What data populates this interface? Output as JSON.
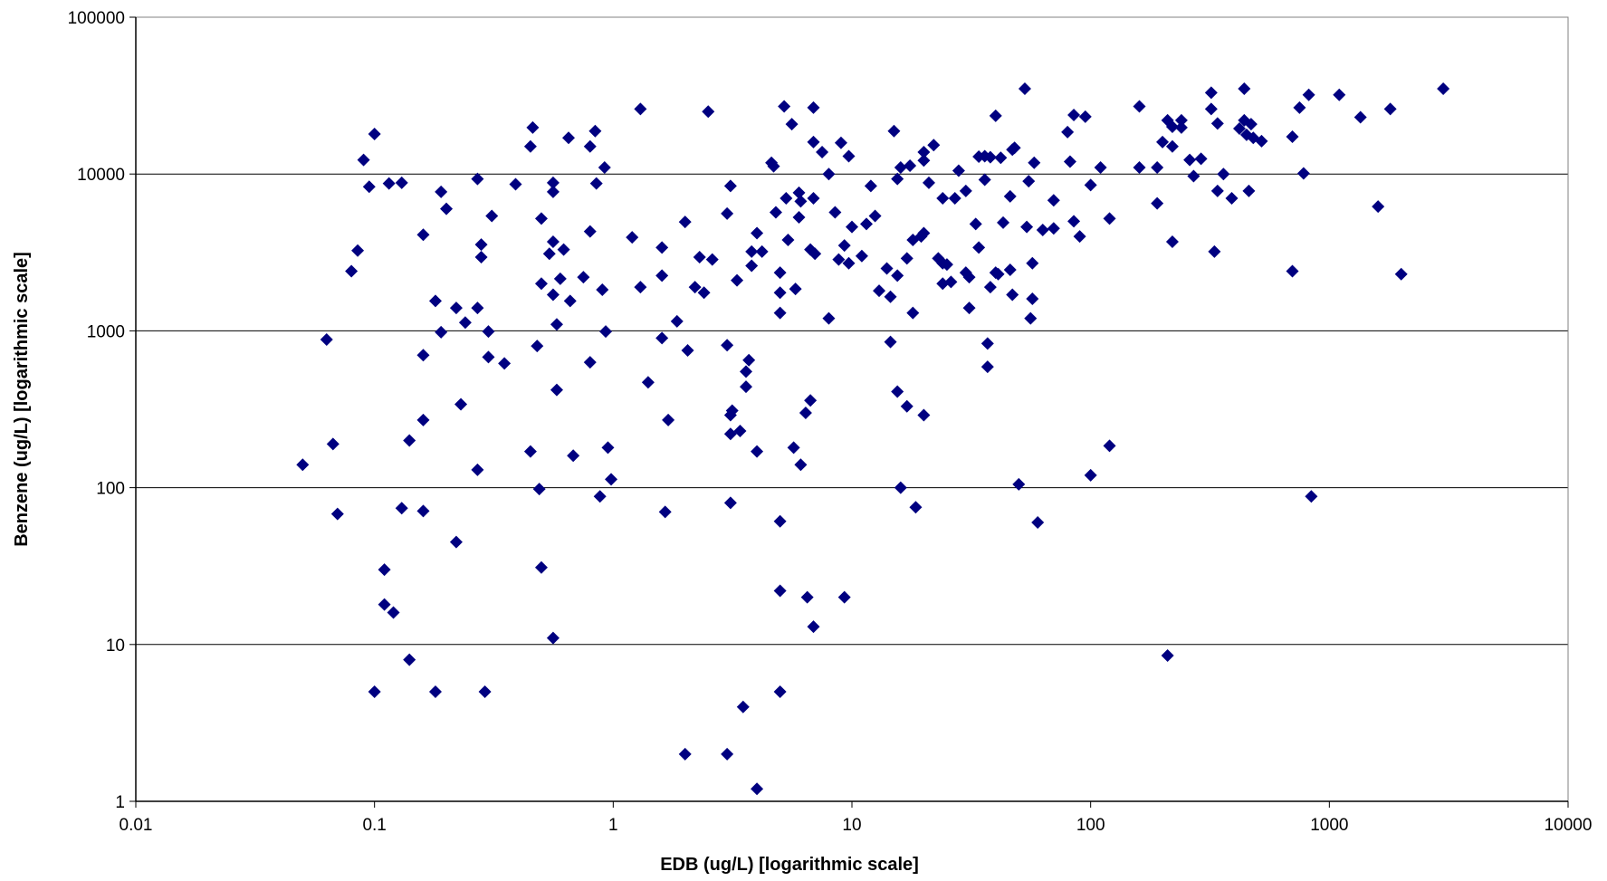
{
  "chart_data": {
    "type": "scatter",
    "title": "",
    "xlabel": "EDB (ug/L) [logarithmic scale]",
    "ylabel": "Benzene (ug/L) [logarithmic scale]",
    "x_scale": "log",
    "y_scale": "log",
    "xlim": [
      0.01,
      10000
    ],
    "ylim": [
      1,
      100000
    ],
    "x_ticks": [
      "0.01",
      "0.1",
      "1",
      "10",
      "100",
      "1000",
      "10000"
    ],
    "y_ticks": [
      "1",
      "10",
      "100",
      "1000",
      "10000",
      "100000"
    ],
    "horizontal_gridlines": true,
    "vertical_gridlines": false,
    "legend": "none",
    "colors": {
      "marker": "#000080",
      "gridline": "#000000",
      "axis": "#000000"
    },
    "marker": "diamond",
    "points": [
      [
        0.05,
        140
      ],
      [
        0.063,
        880
      ],
      [
        0.067,
        190
      ],
      [
        0.07,
        68
      ],
      [
        0.08,
        2400
      ],
      [
        0.085,
        3250
      ],
      [
        0.09,
        12300
      ],
      [
        0.095,
        8300
      ],
      [
        0.1,
        18000
      ],
      [
        0.1,
        5
      ],
      [
        0.11,
        30
      ],
      [
        0.11,
        18
      ],
      [
        0.115,
        8700
      ],
      [
        0.12,
        16
      ],
      [
        0.13,
        8800
      ],
      [
        0.13,
        74
      ],
      [
        0.14,
        200
      ],
      [
        0.14,
        8
      ],
      [
        0.16,
        4100
      ],
      [
        0.16,
        700
      ],
      [
        0.16,
        270
      ],
      [
        0.16,
        71
      ],
      [
        0.18,
        1550
      ],
      [
        0.18,
        5
      ],
      [
        0.19,
        7700
      ],
      [
        0.19,
        980
      ],
      [
        0.2,
        6000
      ],
      [
        0.22,
        1400
      ],
      [
        0.22,
        45
      ],
      [
        0.23,
        340
      ],
      [
        0.24,
        1130
      ],
      [
        0.27,
        9300
      ],
      [
        0.27,
        1400
      ],
      [
        0.27,
        130
      ],
      [
        0.28,
        3550
      ],
      [
        0.28,
        2950
      ],
      [
        0.29,
        5
      ],
      [
        0.3,
        990
      ],
      [
        0.3,
        680
      ],
      [
        0.31,
        5400
      ],
      [
        0.35,
        620
      ],
      [
        0.39,
        8600
      ],
      [
        0.45,
        15000
      ],
      [
        0.45,
        170
      ],
      [
        0.46,
        19800
      ],
      [
        0.48,
        800
      ],
      [
        0.49,
        98
      ],
      [
        0.5,
        5200
      ],
      [
        0.5,
        2000
      ],
      [
        0.5,
        31
      ],
      [
        0.54,
        3100
      ],
      [
        0.56,
        8800
      ],
      [
        0.56,
        7700
      ],
      [
        0.56,
        3700
      ],
      [
        0.56,
        1700
      ],
      [
        0.56,
        11
      ],
      [
        0.58,
        1100
      ],
      [
        0.58,
        420
      ],
      [
        0.6,
        2150
      ],
      [
        0.62,
        3300
      ],
      [
        0.65,
        17000
      ],
      [
        0.66,
        1550
      ],
      [
        0.68,
        160
      ],
      [
        0.75,
        2200
      ],
      [
        0.8,
        15000
      ],
      [
        0.8,
        4300
      ],
      [
        0.8,
        630
      ],
      [
        0.84,
        18800
      ],
      [
        0.85,
        8700
      ],
      [
        0.88,
        88
      ],
      [
        0.9,
        1830
      ],
      [
        0.92,
        11000
      ],
      [
        0.93,
        990
      ],
      [
        0.95,
        180
      ],
      [
        0.98,
        113
      ],
      [
        1.2,
        3950
      ],
      [
        1.3,
        26000
      ],
      [
        1.3,
        1900
      ],
      [
        1.4,
        470
      ],
      [
        1.6,
        3400
      ],
      [
        1.6,
        2250
      ],
      [
        1.6,
        900
      ],
      [
        1.65,
        70
      ],
      [
        1.7,
        270
      ],
      [
        1.85,
        1150
      ],
      [
        2.0,
        4950
      ],
      [
        2.05,
        750
      ],
      [
        2.0,
        2
      ],
      [
        2.2,
        1900
      ],
      [
        2.3,
        2950
      ],
      [
        2.4,
        1750
      ],
      [
        2.5,
        25000
      ],
      [
        2.6,
        2850
      ],
      [
        3.0,
        5600
      ],
      [
        3.0,
        810
      ],
      [
        3.0,
        2
      ],
      [
        3.1,
        8400
      ],
      [
        3.1,
        290
      ],
      [
        3.1,
        220
      ],
      [
        3.15,
        310
      ],
      [
        3.1,
        80
      ],
      [
        3.3,
        2100
      ],
      [
        3.4,
        230
      ],
      [
        3.5,
        4
      ],
      [
        3.6,
        550
      ],
      [
        3.6,
        440
      ],
      [
        3.7,
        650
      ],
      [
        3.8,
        2600
      ],
      [
        3.8,
        3200
      ],
      [
        4.0,
        4200
      ],
      [
        4.0,
        170
      ],
      [
        4.0,
        1.2
      ],
      [
        4.2,
        3200
      ],
      [
        4.6,
        11800
      ],
      [
        4.7,
        11200
      ],
      [
        4.8,
        5700
      ],
      [
        5.0,
        2350
      ],
      [
        5.0,
        1750
      ],
      [
        5.0,
        1300
      ],
      [
        5.0,
        61
      ],
      [
        5.0,
        22
      ],
      [
        5.0,
        5
      ],
      [
        5.2,
        27000
      ],
      [
        5.3,
        7000
      ],
      [
        5.4,
        3800
      ],
      [
        5.6,
        20800
      ],
      [
        5.7,
        180
      ],
      [
        5.8,
        1850
      ],
      [
        6.0,
        7600
      ],
      [
        6.0,
        5300
      ],
      [
        6.1,
        6700
      ],
      [
        6.1,
        140
      ],
      [
        6.4,
        300
      ],
      [
        6.5,
        20
      ],
      [
        6.7,
        3300
      ],
      [
        6.7,
        360
      ],
      [
        6.9,
        26500
      ],
      [
        6.9,
        16000
      ],
      [
        6.9,
        7000
      ],
      [
        6.9,
        13
      ],
      [
        7.0,
        3100
      ],
      [
        7.5,
        13800
      ],
      [
        8.0,
        10000
      ],
      [
        8.0,
        1200
      ],
      [
        8.5,
        5700
      ],
      [
        8.8,
        2850
      ],
      [
        9.0,
        15800
      ],
      [
        9.3,
        3500
      ],
      [
        9.3,
        20
      ],
      [
        9.7,
        13000
      ],
      [
        9.7,
        2700
      ],
      [
        10.0,
        4600
      ],
      [
        11.0,
        3000
      ],
      [
        11.5,
        4800
      ],
      [
        12.0,
        8400
      ],
      [
        12.5,
        5400
      ],
      [
        13.0,
        1800
      ],
      [
        14.0,
        2500
      ],
      [
        14.5,
        850
      ],
      [
        14.5,
        1650
      ],
      [
        15.0,
        18800
      ],
      [
        15.5,
        9300
      ],
      [
        15.5,
        410
      ],
      [
        15.5,
        2250
      ],
      [
        16.0,
        11000
      ],
      [
        16.0,
        100
      ],
      [
        17.0,
        2900
      ],
      [
        17.0,
        330
      ],
      [
        17.5,
        11300
      ],
      [
        18.0,
        3800
      ],
      [
        18.0,
        1300
      ],
      [
        18.5,
        75
      ],
      [
        19.5,
        4000
      ],
      [
        20.0,
        12200
      ],
      [
        20.0,
        13800
      ],
      [
        20.0,
        4200
      ],
      [
        20.0,
        290
      ],
      [
        21.0,
        8800
      ],
      [
        22.0,
        15300
      ],
      [
        23.0,
        2900
      ],
      [
        24.0,
        7000
      ],
      [
        24.0,
        2700
      ],
      [
        24.0,
        2000
      ],
      [
        25.0,
        2650
      ],
      [
        26.0,
        2050
      ],
      [
        27.0,
        7000
      ],
      [
        28.0,
        10500
      ],
      [
        30.0,
        7800
      ],
      [
        30.0,
        2350
      ],
      [
        31.0,
        2200
      ],
      [
        31.0,
        1400
      ],
      [
        33.0,
        4800
      ],
      [
        34.0,
        12900
      ],
      [
        34.0,
        3400
      ],
      [
        36.0,
        9200
      ],
      [
        36.0,
        13000
      ],
      [
        37.0,
        830
      ],
      [
        37.0,
        590
      ],
      [
        38.0,
        12800
      ],
      [
        38.0,
        1900
      ],
      [
        40.0,
        23500
      ],
      [
        40.0,
        2350
      ],
      [
        41.0,
        2300
      ],
      [
        42.0,
        12700
      ],
      [
        43.0,
        4900
      ],
      [
        46.0,
        7200
      ],
      [
        46.0,
        2450
      ],
      [
        47.0,
        14300
      ],
      [
        48.0,
        14700
      ],
      [
        47.0,
        1700
      ],
      [
        50.0,
        105
      ],
      [
        53.0,
        35000
      ],
      [
        54.0,
        4600
      ],
      [
        55.0,
        9000
      ],
      [
        56.0,
        1200
      ],
      [
        57.0,
        2700
      ],
      [
        57.0,
        1600
      ],
      [
        58.0,
        11800
      ],
      [
        60.0,
        60
      ],
      [
        63.0,
        4400
      ],
      [
        70.0,
        6800
      ],
      [
        70.0,
        4500
      ],
      [
        80.0,
        18500
      ],
      [
        82.0,
        12000
      ],
      [
        85.0,
        5000
      ],
      [
        85.0,
        23800
      ],
      [
        90.0,
        4000
      ],
      [
        95.0,
        23200
      ],
      [
        100.0,
        8500
      ],
      [
        100.0,
        120
      ],
      [
        110.0,
        11000
      ],
      [
        120.0,
        5200
      ],
      [
        120.0,
        185
      ],
      [
        160.0,
        27000
      ],
      [
        160.0,
        11000
      ],
      [
        190.0,
        11000
      ],
      [
        190.0,
        6500
      ],
      [
        200.0,
        16000
      ],
      [
        210.0,
        22000
      ],
      [
        210.0,
        8.5
      ],
      [
        220.0,
        3700
      ],
      [
        220.0,
        15000
      ],
      [
        220.0,
        20000
      ],
      [
        240.0,
        19800
      ],
      [
        240.0,
        22000
      ],
      [
        260.0,
        12300
      ],
      [
        270.0,
        9700
      ],
      [
        290.0,
        12500
      ],
      [
        320.0,
        33000
      ],
      [
        320.0,
        26000
      ],
      [
        330.0,
        3200
      ],
      [
        340.0,
        21000
      ],
      [
        340.0,
        7800
      ],
      [
        360.0,
        10000
      ],
      [
        390.0,
        7000
      ],
      [
        420.0,
        19500
      ],
      [
        440.0,
        35000
      ],
      [
        440.0,
        22000
      ],
      [
        450.0,
        17800
      ],
      [
        460.0,
        7800
      ],
      [
        470.0,
        20800
      ],
      [
        480.0,
        17000
      ],
      [
        520.0,
        16200
      ],
      [
        700.0,
        17300
      ],
      [
        700.0,
        2400
      ],
      [
        750.0,
        26500
      ],
      [
        780.0,
        10100
      ],
      [
        820.0,
        32000
      ],
      [
        840.0,
        88
      ],
      [
        1100.0,
        32000
      ],
      [
        1350.0,
        23000
      ],
      [
        1600.0,
        6200
      ],
      [
        1800.0,
        26000
      ],
      [
        2000.0,
        2300
      ],
      [
        3000.0,
        35000
      ]
    ]
  }
}
